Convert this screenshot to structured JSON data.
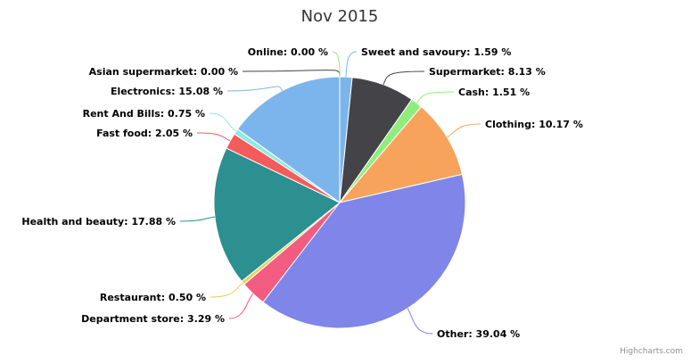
{
  "chart_data": {
    "type": "pie",
    "title": "Nov 2015",
    "value_suffix": " %",
    "slices": [
      {
        "name": "Sweet and savoury",
        "value": 1.59,
        "color": "#7cb5ec"
      },
      {
        "name": "Supermarket",
        "value": 8.13,
        "color": "#434348"
      },
      {
        "name": "Cash",
        "value": 1.51,
        "color": "#90ed7d"
      },
      {
        "name": "Clothing",
        "value": 10.17,
        "color": "#f7a35c"
      },
      {
        "name": "Other",
        "value": 39.04,
        "color": "#8085e9"
      },
      {
        "name": "Department store",
        "value": 3.29,
        "color": "#f15c80"
      },
      {
        "name": "Restaurant",
        "value": 0.5,
        "color": "#e4d354"
      },
      {
        "name": "Health and beauty",
        "value": 17.88,
        "color": "#2b908f"
      },
      {
        "name": "Fast food",
        "value": 2.05,
        "color": "#f45b5b"
      },
      {
        "name": "Rent And Bills",
        "value": 0.75,
        "color": "#91e8e1"
      },
      {
        "name": "Electronics",
        "value": 15.08,
        "color": "#7cb5ec"
      },
      {
        "name": "Asian supermarket",
        "value": 0.0,
        "color": "#434348"
      },
      {
        "name": "Online",
        "value": 0.0,
        "color": "#90ed7d"
      }
    ]
  },
  "credits": "Highcharts.com"
}
